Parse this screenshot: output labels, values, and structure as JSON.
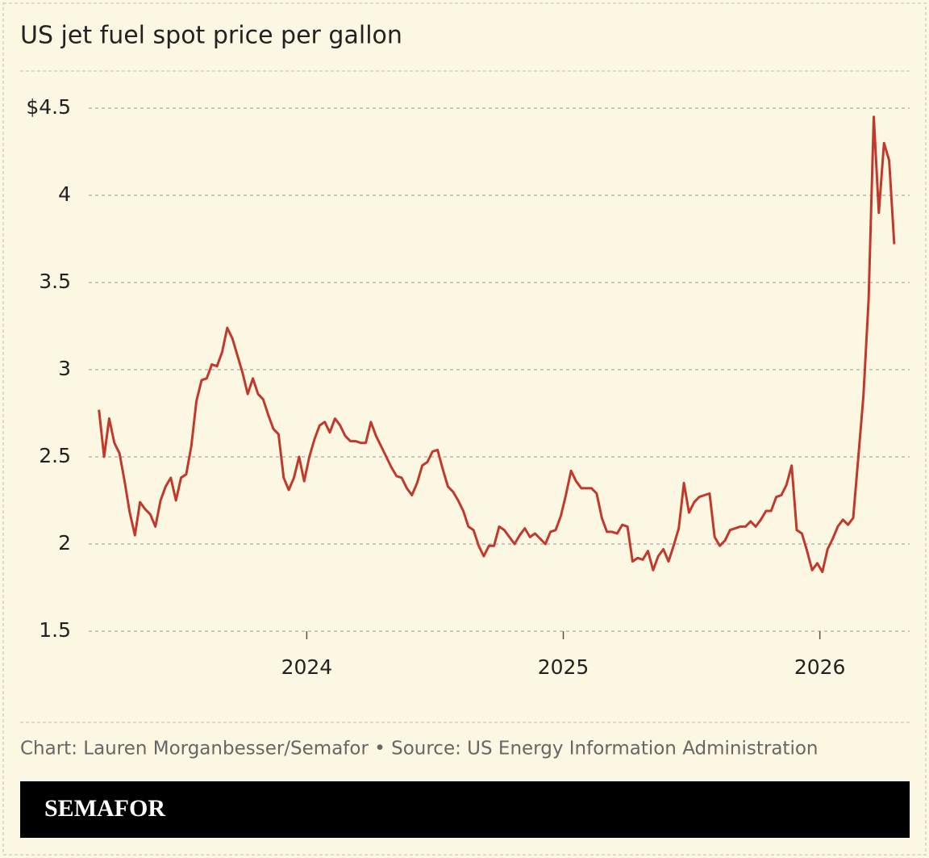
{
  "chart_data": {
    "type": "line",
    "title": "US jet fuel spot price per gallon",
    "x": [
      2023.19,
      2023.21,
      2023.23,
      2023.25,
      2023.27,
      2023.29,
      2023.31,
      2023.33,
      2023.35,
      2023.37,
      2023.39,
      2023.41,
      2023.43,
      2023.45,
      2023.47,
      2023.49,
      2023.51,
      2023.53,
      2023.55,
      2023.57,
      2023.59,
      2023.61,
      2023.63,
      2023.65,
      2023.67,
      2023.69,
      2023.71,
      2023.73,
      2023.75,
      2023.77,
      2023.79,
      2023.81,
      2023.83,
      2023.85,
      2023.87,
      2023.89,
      2023.91,
      2023.93,
      2023.95,
      2023.97,
      2023.99,
      2024.01,
      2024.03,
      2024.05,
      2024.07,
      2024.09,
      2024.11,
      2024.13,
      2024.15,
      2024.17,
      2024.19,
      2024.21,
      2024.23,
      2024.25,
      2024.27,
      2024.29,
      2024.31,
      2024.33,
      2024.35,
      2024.37,
      2024.39,
      2024.41,
      2024.43,
      2024.45,
      2024.47,
      2024.49,
      2024.51,
      2024.53,
      2024.55,
      2024.57,
      2024.59,
      2024.61,
      2024.63,
      2024.65,
      2024.67,
      2024.69,
      2024.71,
      2024.73,
      2024.75,
      2024.77,
      2024.79,
      2024.81,
      2024.83,
      2024.85,
      2024.87,
      2024.89,
      2024.91,
      2024.93,
      2024.95,
      2024.97,
      2024.99,
      2025.01,
      2025.03,
      2025.05,
      2025.07,
      2025.09,
      2025.11,
      2025.13,
      2025.15,
      2025.17,
      2025.19,
      2025.21,
      2025.23,
      2025.25,
      2025.27,
      2025.29,
      2025.31,
      2025.33,
      2025.35,
      2025.37,
      2025.39,
      2025.41,
      2025.43,
      2025.45,
      2025.47,
      2025.49,
      2025.51,
      2025.53,
      2025.55,
      2025.57,
      2025.59,
      2025.61,
      2025.63,
      2025.65,
      2025.67,
      2025.69,
      2025.71,
      2025.73,
      2025.75,
      2025.77,
      2025.79,
      2025.81,
      2025.83,
      2025.85,
      2025.87,
      2025.89,
      2025.91,
      2025.93,
      2025.95,
      2025.97,
      2025.99,
      2026.01,
      2026.03,
      2026.05,
      2026.07,
      2026.09,
      2026.11,
      2026.13,
      2026.15,
      2026.17,
      2026.19,
      2026.21,
      2026.23,
      2026.25,
      2026.27,
      2026.29
    ],
    "values": [
      2.77,
      2.5,
      2.72,
      2.58,
      2.52,
      2.36,
      2.18,
      2.05,
      2.24,
      2.2,
      2.17,
      2.1,
      2.25,
      2.33,
      2.38,
      2.25,
      2.38,
      2.4,
      2.56,
      2.82,
      2.94,
      2.95,
      3.03,
      3.02,
      3.1,
      3.24,
      3.18,
      3.08,
      2.98,
      2.86,
      2.95,
      2.86,
      2.83,
      2.74,
      2.66,
      2.63,
      2.38,
      2.31,
      2.38,
      2.5,
      2.36,
      2.5,
      2.6,
      2.68,
      2.7,
      2.64,
      2.72,
      2.68,
      2.62,
      2.59,
      2.59,
      2.58,
      2.58,
      2.7,
      2.62,
      2.56,
      2.5,
      2.44,
      2.39,
      2.38,
      2.32,
      2.28,
      2.35,
      2.45,
      2.47,
      2.53,
      2.54,
      2.43,
      2.33,
      2.3,
      2.25,
      2.19,
      2.1,
      2.08,
      1.99,
      1.93,
      1.99,
      1.99,
      2.1,
      2.08,
      2.04,
      2.0,
      2.05,
      2.09,
      2.04,
      2.06,
      2.03,
      2.0,
      2.07,
      2.08,
      2.16,
      2.28,
      2.42,
      2.36,
      2.32,
      2.32,
      2.32,
      2.29,
      2.15,
      2.07,
      2.07,
      2.06,
      2.11,
      2.1,
      1.9,
      1.92,
      1.91,
      1.96,
      1.85,
      1.93,
      1.97,
      1.9,
      1.99,
      2.09,
      2.35,
      2.18,
      2.24,
      2.27,
      2.28,
      2.29,
      2.04,
      1.99,
      2.02,
      2.08,
      2.09,
      2.1,
      2.1,
      2.13,
      2.1,
      2.14,
      2.19,
      2.19,
      2.27,
      2.28,
      2.34,
      2.45,
      2.08,
      2.06,
      1.96,
      1.85,
      1.89,
      1.84,
      1.97,
      2.03,
      2.1,
      2.14,
      2.11,
      2.15,
      2.5,
      2.85,
      3.4,
      4.45,
      3.9,
      4.3,
      4.2,
      3.72
    ],
    "color": "#c0392b",
    "xlim": [
      2023.15,
      2026.35
    ],
    "xticks": [
      2024,
      2025,
      2026
    ],
    "ylim": [
      1.5,
      4.5
    ],
    "yticks": [
      1.5,
      2,
      2.5,
      3,
      3.5,
      4,
      {
        "value": 4.5,
        "label": "$4.5"
      }
    ],
    "grid": true,
    "source": "Chart: Lauren Morganbesser/Semafor • Source: US Energy Information Administration"
  },
  "brand": "SEMAFOR"
}
